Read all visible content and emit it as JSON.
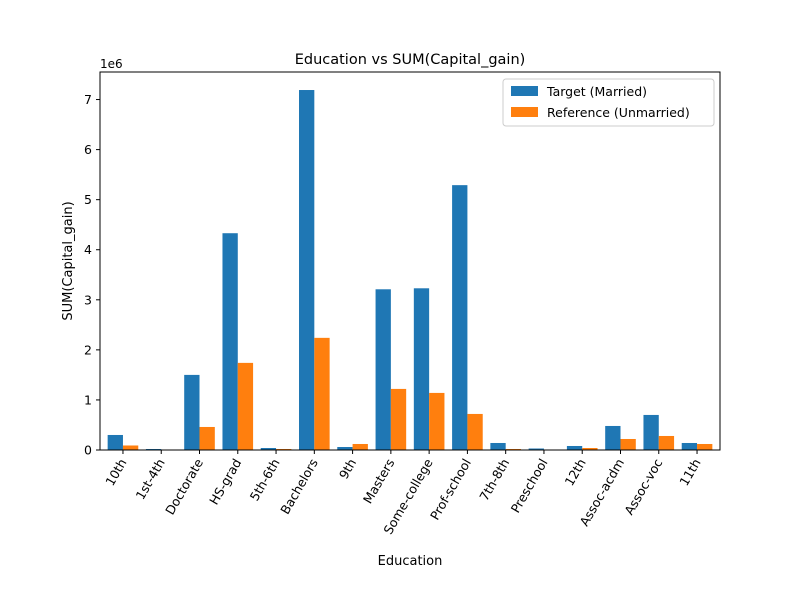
{
  "chart_data": {
    "type": "bar",
    "title": "Education vs SUM(Capital_gain)",
    "xlabel": "Education",
    "ylabel": "SUM(Capital_gain)",
    "y_offset_label": "1e6",
    "ylim": [
      0,
      7.55
    ],
    "yticks": [
      0,
      1,
      2,
      3,
      4,
      5,
      6,
      7
    ],
    "legend_position": "top-right",
    "grid": false,
    "categories": [
      "10th",
      "1st-4th",
      "Doctorate",
      "HS-grad",
      "5th-6th",
      "Bachelors",
      "9th",
      "Masters",
      "Some-college",
      "Prof-school",
      "7th-8th",
      "Preschool",
      "12th",
      "Assoc-acdm",
      "Assoc-voc",
      "11th"
    ],
    "series": [
      {
        "name": "Target (Married)",
        "color": "#1f77b4",
        "values": [
          0.3,
          0.02,
          1.5,
          4.33,
          0.04,
          7.19,
          0.06,
          3.21,
          3.23,
          5.29,
          0.14,
          0.03,
          0.08,
          0.48,
          0.7,
          0.14
        ]
      },
      {
        "name": "Reference (Unmarried)",
        "color": "#ff7f0e",
        "values": [
          0.09,
          0.005,
          0.46,
          1.74,
          0.02,
          2.24,
          0.12,
          1.22,
          1.14,
          0.72,
          0.02,
          0.005,
          0.04,
          0.22,
          0.28,
          0.12
        ]
      }
    ]
  }
}
